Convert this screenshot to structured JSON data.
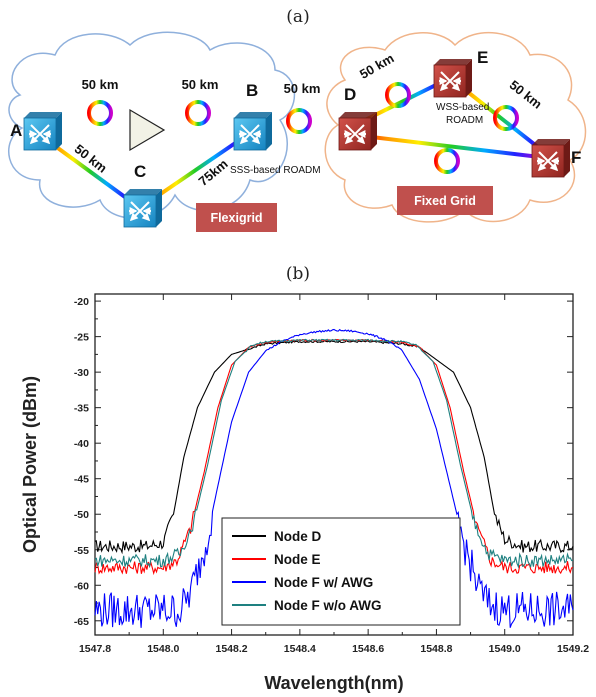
{
  "panel_a": {
    "label": "(a)",
    "km_labels": [
      "50 km",
      "50 km",
      "50 km",
      "50 km",
      "75km",
      "50 km",
      "50 km"
    ],
    "nodes": [
      {
        "id": "A",
        "label": "A"
      },
      {
        "id": "B",
        "label": "B"
      },
      {
        "id": "C",
        "label": "C"
      },
      {
        "id": "D",
        "label": "D"
      },
      {
        "id": "E",
        "label": "E"
      },
      {
        "id": "F",
        "label": "F"
      }
    ],
    "notes": {
      "sss": "SSS-based ROADM",
      "wss_line1": "WSS-based",
      "wss_line2": "ROADM"
    },
    "boxes": {
      "flexigrid": "Flexigrid",
      "fixed_grid": "Fixed Grid"
    },
    "colors": {
      "blue_switch": "#29a9e0",
      "red_switch": "#b5362f",
      "box_fill": "#c0504d",
      "blue_cloud": "#8fb0dc",
      "orange_cloud": "#f0b48a"
    },
    "icons": [
      "cross-connect-switch-icon",
      "amplifier-triangle-icon",
      "fiber-spool-icon"
    ]
  },
  "panel_b": {
    "label": "(b)"
  },
  "chart_data": {
    "type": "line",
    "xlabel": "Wavelength(nm)",
    "ylabel": "Optical Power (dBm)",
    "xlim": [
      1547.8,
      1549.2
    ],
    "ylim": [
      -67,
      -19
    ],
    "xticks": [
      "1547.8",
      "1548.0",
      "1548.2",
      "1548.4",
      "1548.6",
      "1548.8",
      "1549.0",
      "1549.2"
    ],
    "yticks": [
      "-20",
      "-25",
      "-30",
      "-35",
      "-40",
      "-45",
      "-50",
      "-55",
      "-60",
      "-65"
    ],
    "legend_position": "bottom-center",
    "grid": false,
    "series": [
      {
        "name": "Node D",
        "color": "#000000",
        "x": [
          1547.8,
          1547.95,
          1548.0,
          1548.03,
          1548.06,
          1548.1,
          1548.15,
          1548.2,
          1548.3,
          1548.4,
          1548.5,
          1548.6,
          1548.7,
          1548.75,
          1548.85,
          1548.9,
          1548.94,
          1548.97,
          1549.0,
          1549.05,
          1549.2
        ],
        "y": [
          -54.5,
          -54.5,
          -54.0,
          -50,
          -42,
          -35,
          -30,
          -27.5,
          -26,
          -25.7,
          -25.7,
          -25.7,
          -26,
          -26.5,
          -30,
          -35,
          -42,
          -50,
          -53.5,
          -54.5,
          -54.5
        ]
      },
      {
        "name": "Node E",
        "color": "#ff0000",
        "x": [
          1547.8,
          1548.0,
          1548.04,
          1548.08,
          1548.12,
          1548.16,
          1548.2,
          1548.25,
          1548.3,
          1548.4,
          1548.5,
          1548.6,
          1548.7,
          1548.75,
          1548.8,
          1548.84,
          1548.88,
          1548.92,
          1548.96,
          1549.0,
          1549.2
        ],
        "y": [
          -57.5,
          -57.5,
          -56.5,
          -52,
          -44,
          -35,
          -29,
          -26.5,
          -25.8,
          -25.5,
          -25.5,
          -25.5,
          -25.8,
          -26.5,
          -29,
          -35,
          -44,
          -52,
          -56.5,
          -57.5,
          -57.5
        ]
      },
      {
        "name": "Node F w/ AWG",
        "color": "#0000ff",
        "x": [
          1547.8,
          1548.05,
          1548.08,
          1548.12,
          1548.16,
          1548.2,
          1548.25,
          1548.3,
          1548.35,
          1548.4,
          1548.45,
          1548.5,
          1548.55,
          1548.6,
          1548.65,
          1548.7,
          1548.75,
          1548.8,
          1548.84,
          1548.88,
          1548.92,
          1548.95,
          1549.0,
          1549.2
        ],
        "y": [
          -63.5,
          -63.5,
          -61,
          -55,
          -46,
          -37,
          -30,
          -27,
          -25.6,
          -24.7,
          -24.3,
          -24.1,
          -24.2,
          -24.6,
          -25.4,
          -27,
          -31,
          -38,
          -46,
          -54,
          -60,
          -62.5,
          -63.5,
          -63.5
        ]
      },
      {
        "name": "Node F w/o AWG",
        "color": "#1e8080",
        "x": [
          1547.8,
          1548.0,
          1548.05,
          1548.09,
          1548.13,
          1548.17,
          1548.21,
          1548.26,
          1548.3,
          1548.4,
          1548.5,
          1548.6,
          1548.7,
          1548.74,
          1548.79,
          1548.83,
          1548.87,
          1548.91,
          1548.95,
          1549.0,
          1549.2
        ],
        "y": [
          -56.5,
          -56.5,
          -55.5,
          -51,
          -43,
          -34,
          -28.5,
          -26.2,
          -25.7,
          -25.5,
          -25.5,
          -25.5,
          -25.7,
          -26.2,
          -28.5,
          -34,
          -43,
          -51,
          -55.5,
          -56.5,
          -56.5
        ]
      }
    ]
  }
}
